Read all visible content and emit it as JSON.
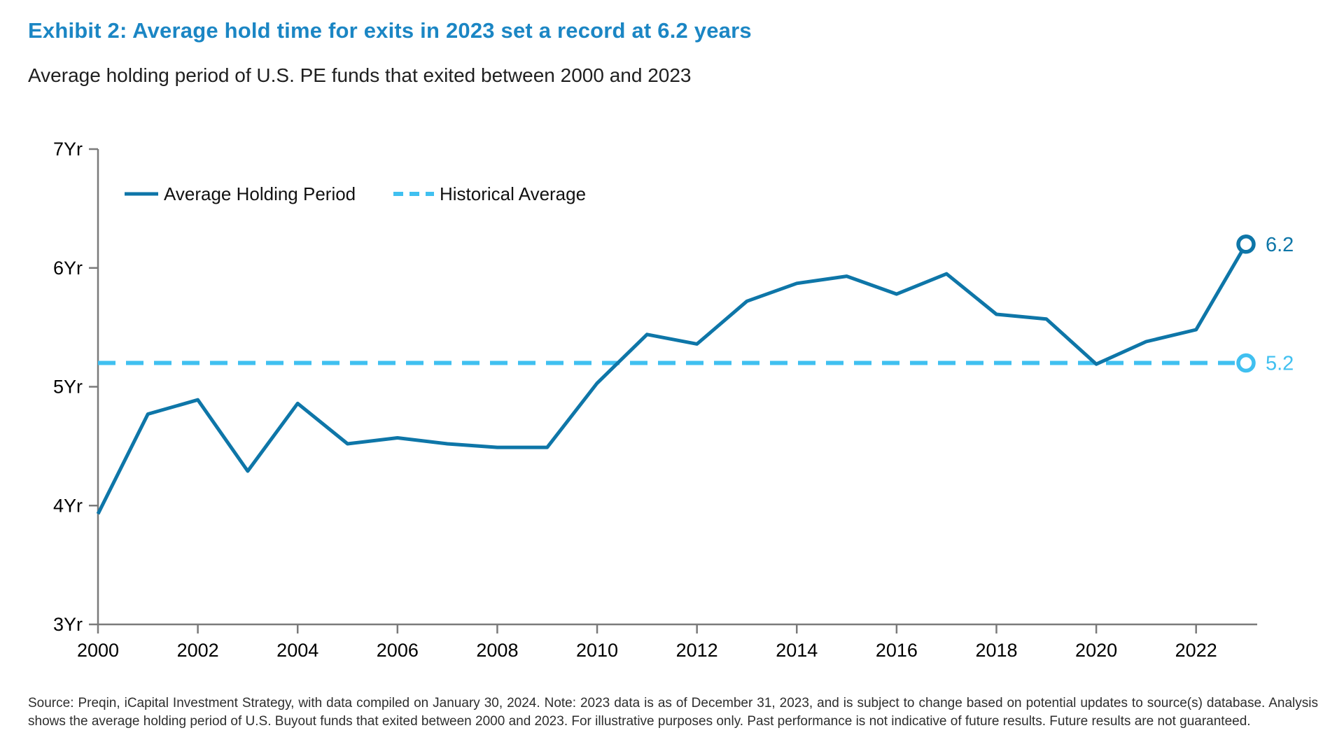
{
  "header": {
    "title": "Exhibit 2: Average hold time for exits in 2023 set a record at 6.2 years",
    "subtitle": "Average holding period of U.S. PE funds that exited between 2000 and 2023"
  },
  "colors": {
    "title_blue": "#1b86c4",
    "line_dark_blue": "#0e76a8",
    "dashed_light_blue": "#40c0f0",
    "axis_gray": "#7a7a7a",
    "text_dark": "#2e2e2e"
  },
  "chart_data": {
    "type": "line",
    "x": [
      2000,
      2001,
      2002,
      2003,
      2004,
      2005,
      2006,
      2007,
      2008,
      2009,
      2010,
      2011,
      2012,
      2013,
      2014,
      2015,
      2016,
      2017,
      2018,
      2019,
      2020,
      2021,
      2022,
      2023
    ],
    "series": [
      {
        "name": "Average Holding Period",
        "style": "solid",
        "color": "#0e76a8",
        "values": [
          3.93,
          4.77,
          4.89,
          4.29,
          4.86,
          4.52,
          4.57,
          4.52,
          4.49,
          4.49,
          5.03,
          5.44,
          5.36,
          5.72,
          5.87,
          5.93,
          5.78,
          5.95,
          5.61,
          5.57,
          5.19,
          5.38,
          5.48,
          6.2
        ]
      },
      {
        "name": "Historical Average",
        "style": "dashed",
        "color": "#40c0f0",
        "value": 5.2
      }
    ],
    "end_labels": [
      {
        "text": "6.2",
        "series": "Average Holding Period",
        "value": 6.2
      },
      {
        "text": "5.2",
        "series": "Historical Average",
        "value": 5.2
      }
    ],
    "ylim": [
      3,
      7
    ],
    "xlim": [
      2000,
      2023
    ],
    "y_ticks": [
      {
        "value": 7,
        "label": "7Yr"
      },
      {
        "value": 6,
        "label": "6Yr"
      },
      {
        "value": 5,
        "label": "5Yr"
      },
      {
        "value": 4,
        "label": "4Yr"
      },
      {
        "value": 3,
        "label": "3Yr"
      }
    ],
    "x_ticks": [
      {
        "value": 2000,
        "label": "2000"
      },
      {
        "value": 2002,
        "label": "2002"
      },
      {
        "value": 2004,
        "label": "2004"
      },
      {
        "value": 2006,
        "label": "2006"
      },
      {
        "value": 2008,
        "label": "2008"
      },
      {
        "value": 2010,
        "label": "2010"
      },
      {
        "value": 2012,
        "label": "2012"
      },
      {
        "value": 2014,
        "label": "2014"
      },
      {
        "value": 2016,
        "label": "2016"
      },
      {
        "value": 2018,
        "label": "2018"
      },
      {
        "value": 2020,
        "label": "2020"
      },
      {
        "value": 2022,
        "label": "2022"
      }
    ],
    "grid": false,
    "legend_position": "inside-top-left"
  },
  "source_note": "Source: Preqin, iCapital Investment Strategy, with data compiled on January 30, 2024. Note: 2023 data is as of December 31, 2023, and is subject to change based on potential updates to source(s) database. Analysis shows the average holding period of U.S. Buyout funds that exited between 2000 and 2023. For illustrative purposes only. Past performance is not indicative of future results. Future results are not guaranteed."
}
